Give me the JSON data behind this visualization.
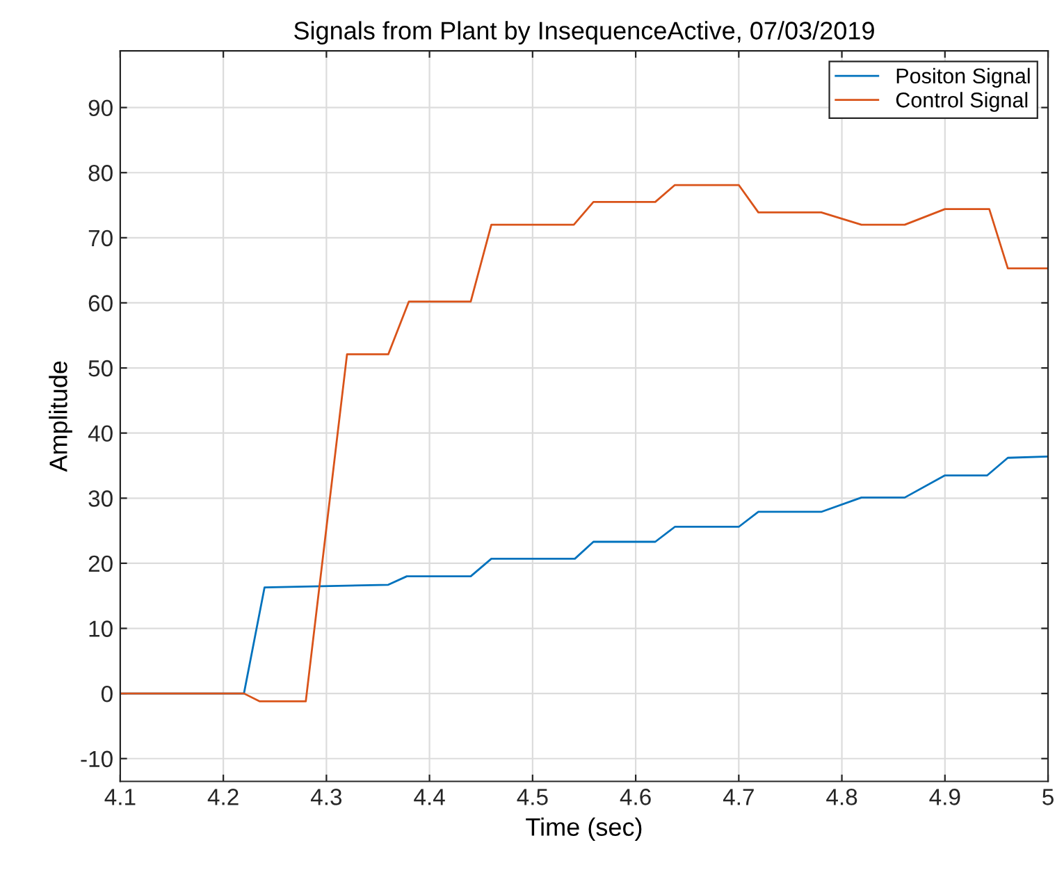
{
  "chart_data": {
    "type": "line",
    "title": "Signals from Plant by InsequenceActive, 07/03/2019",
    "xlabel": "Time (sec)",
    "ylabel": "Amplitude",
    "xlim": [
      4.1,
      5.0
    ],
    "xticks": [
      4.1,
      4.2,
      4.3,
      4.4,
      4.5,
      4.6,
      4.7,
      4.8,
      4.9,
      {
        "value": 5.0,
        "label": "5"
      }
    ],
    "ylim": [
      -13.5,
      98.7
    ],
    "yticks": [
      -10,
      0,
      10,
      20,
      30,
      40,
      50,
      60,
      70,
      80,
      90
    ],
    "grid": true,
    "legend": "top right",
    "line_style": "solid",
    "series": [
      {
        "name": "Positon Signal",
        "color": "#0072bd",
        "x": [
          4.1,
          4.22,
          4.24,
          4.36,
          4.378,
          4.44,
          4.46,
          4.541,
          4.559,
          4.619,
          4.638,
          4.7,
          4.719,
          4.78,
          4.819,
          4.861,
          4.9,
          4.941,
          4.961,
          5.0
        ],
        "values": [
          0,
          0,
          16.3,
          16.7,
          18.0,
          18.0,
          20.7,
          20.7,
          23.3,
          23.3,
          25.6,
          25.6,
          27.9,
          27.9,
          30.1,
          30.1,
          33.5,
          33.5,
          36.2,
          36.4
        ]
      },
      {
        "name": "Control Signal",
        "color": "#d95319",
        "x": [
          4.1,
          4.22,
          4.235,
          4.28,
          4.32,
          4.36,
          4.38,
          4.44,
          4.46,
          4.54,
          4.559,
          4.619,
          4.638,
          4.7,
          4.719,
          4.78,
          4.819,
          4.861,
          4.9,
          4.943,
          4.961,
          5.0
        ],
        "values": [
          0,
          0,
          -1.2,
          -1.2,
          52.1,
          52.1,
          60.2,
          60.2,
          72.0,
          72.0,
          75.5,
          75.5,
          78.1,
          78.1,
          73.9,
          73.9,
          72.0,
          72.0,
          74.4,
          74.4,
          65.3,
          65.3
        ]
      }
    ]
  }
}
